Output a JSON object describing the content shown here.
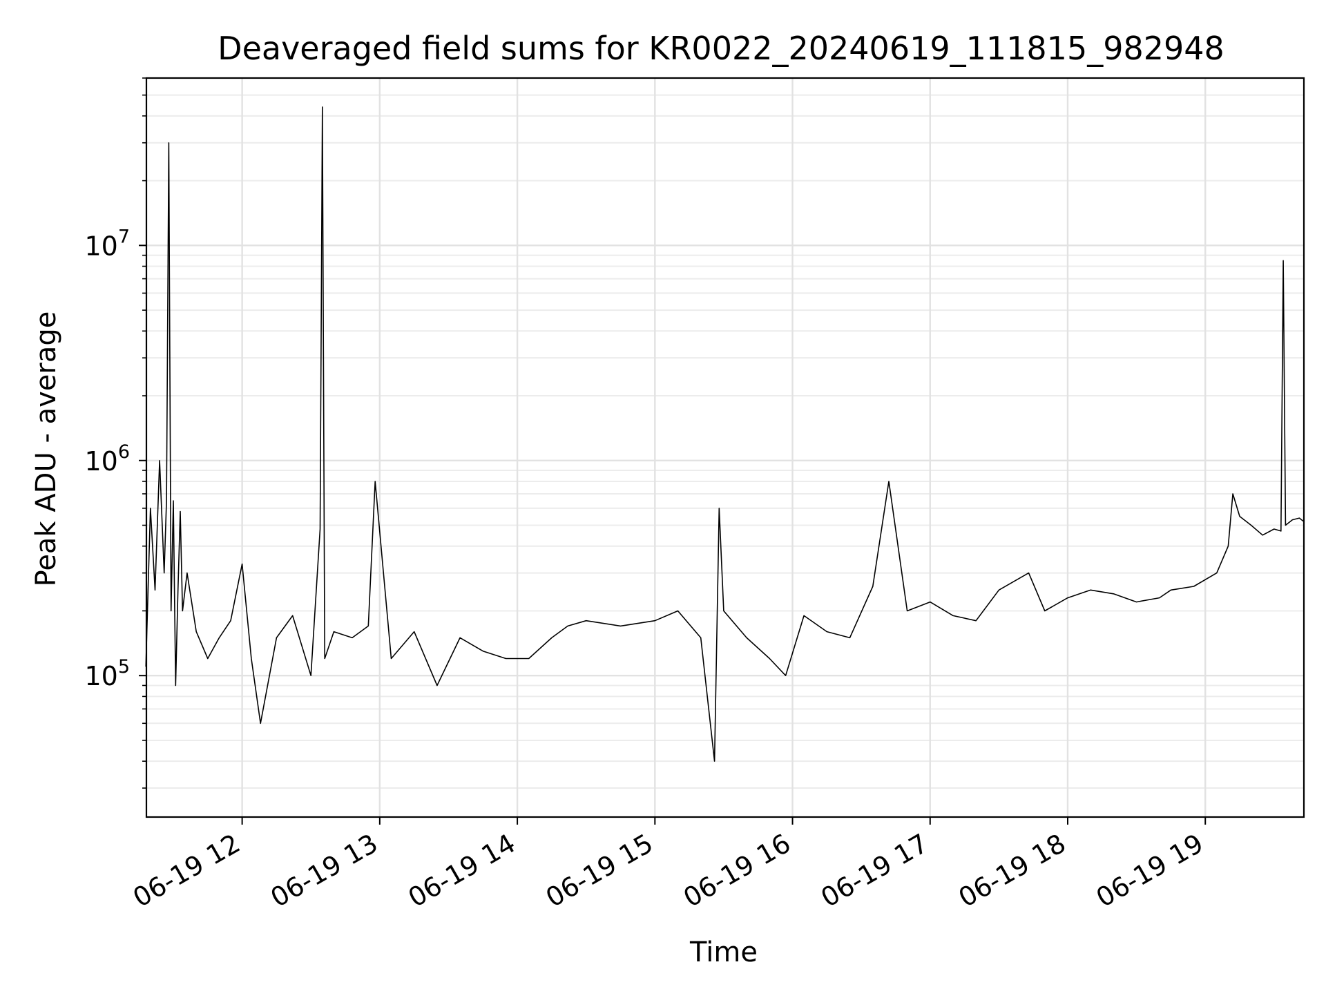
{
  "chart_data": {
    "type": "line",
    "title": "Deaveraged field sums for KR0022_20240619_111815_982948",
    "xlabel": "Time",
    "ylabel": "Peak ADU - average",
    "y_scale": "log",
    "xlim": [
      "2024-06-19T11:18:15",
      "2024-06-19T19:43:00"
    ],
    "ylim": [
      22000,
      60000000
    ],
    "grid": {
      "major": true,
      "minor": true
    },
    "line_color": "#000000",
    "x_tick_labels": [
      "06-19 12",
      "06-19 13",
      "06-19 14",
      "06-19 15",
      "06-19 16",
      "06-19 17",
      "06-19 18",
      "06-19 19"
    ],
    "x_tick_values": [
      "2024-06-19T12:00",
      "2024-06-19T13:00",
      "2024-06-19T14:00",
      "2024-06-19T15:00",
      "2024-06-19T16:00",
      "2024-06-19T17:00",
      "2024-06-19T18:00",
      "2024-06-19T19:00"
    ],
    "y_ticks": [
      {
        "value": 100000,
        "base": "10",
        "exp": "5"
      },
      {
        "value": 1000000,
        "base": "10",
        "exp": "6"
      },
      {
        "value": 10000000,
        "base": "10",
        "exp": "7"
      }
    ],
    "series": [
      {
        "x": [
          "2024-06-19T11:18",
          "2024-06-19T11:20",
          "2024-06-19T11:22",
          "2024-06-19T11:24",
          "2024-06-19T11:26",
          "2024-06-19T11:27",
          "2024-06-19T11:28",
          "2024-06-19T11:29",
          "2024-06-19T11:30",
          "2024-06-19T11:31",
          "2024-06-19T11:32",
          "2024-06-19T11:33",
          "2024-06-19T11:34",
          "2024-06-19T11:36",
          "2024-06-19T11:40",
          "2024-06-19T11:45",
          "2024-06-19T11:50",
          "2024-06-19T11:55",
          "2024-06-19T12:00",
          "2024-06-19T12:04",
          "2024-06-19T12:08",
          "2024-06-19T12:15",
          "2024-06-19T12:22",
          "2024-06-19T12:30",
          "2024-06-19T12:34",
          "2024-06-19T12:35",
          "2024-06-19T12:36",
          "2024-06-19T12:40",
          "2024-06-19T12:48",
          "2024-06-19T12:55",
          "2024-06-19T12:58",
          "2024-06-19T13:05",
          "2024-06-19T13:15",
          "2024-06-19T13:25",
          "2024-06-19T13:35",
          "2024-06-19T13:45",
          "2024-06-19T13:55",
          "2024-06-19T14:05",
          "2024-06-19T14:15",
          "2024-06-19T14:22",
          "2024-06-19T14:30",
          "2024-06-19T14:45",
          "2024-06-19T15:00",
          "2024-06-19T15:10",
          "2024-06-19T15:20",
          "2024-06-19T15:26",
          "2024-06-19T15:28",
          "2024-06-19T15:30",
          "2024-06-19T15:40",
          "2024-06-19T15:50",
          "2024-06-19T15:57",
          "2024-06-19T16:05",
          "2024-06-19T16:15",
          "2024-06-19T16:25",
          "2024-06-19T16:35",
          "2024-06-19T16:42",
          "2024-06-19T16:50",
          "2024-06-19T17:00",
          "2024-06-19T17:10",
          "2024-06-19T17:20",
          "2024-06-19T17:30",
          "2024-06-19T17:43",
          "2024-06-19T17:50",
          "2024-06-19T18:00",
          "2024-06-19T18:10",
          "2024-06-19T18:20",
          "2024-06-19T18:30",
          "2024-06-19T18:40",
          "2024-06-19T18:45",
          "2024-06-19T18:55",
          "2024-06-19T19:05",
          "2024-06-19T19:10",
          "2024-06-19T19:12",
          "2024-06-19T19:15",
          "2024-06-19T19:20",
          "2024-06-19T19:25",
          "2024-06-19T19:30",
          "2024-06-19T19:33",
          "2024-06-19T19:34",
          "2024-06-19T19:35",
          "2024-06-19T19:38",
          "2024-06-19T19:41",
          "2024-06-19T19:43"
        ],
        "y": [
          110000,
          600000,
          250000,
          1000000,
          300000,
          650000,
          30000000,
          200000,
          650000,
          90000,
          250000,
          580000,
          200000,
          300000,
          160000,
          120000,
          150000,
          180000,
          330000,
          120000,
          60000,
          150000,
          190000,
          100000,
          480000,
          44000000,
          120000,
          160000,
          150000,
          170000,
          800000,
          120000,
          160000,
          90000,
          150000,
          130000,
          120000,
          120000,
          150000,
          170000,
          180000,
          170000,
          180000,
          200000,
          150000,
          40000,
          600000,
          200000,
          150000,
          120000,
          100000,
          190000,
          160000,
          150000,
          260000,
          800000,
          200000,
          220000,
          190000,
          180000,
          250000,
          300000,
          200000,
          230000,
          250000,
          240000,
          220000,
          230000,
          250000,
          260000,
          300000,
          400000,
          700000,
          550000,
          500000,
          450000,
          480000,
          470000,
          8500000,
          500000,
          530000,
          540000,
          520000
        ]
      }
    ]
  }
}
